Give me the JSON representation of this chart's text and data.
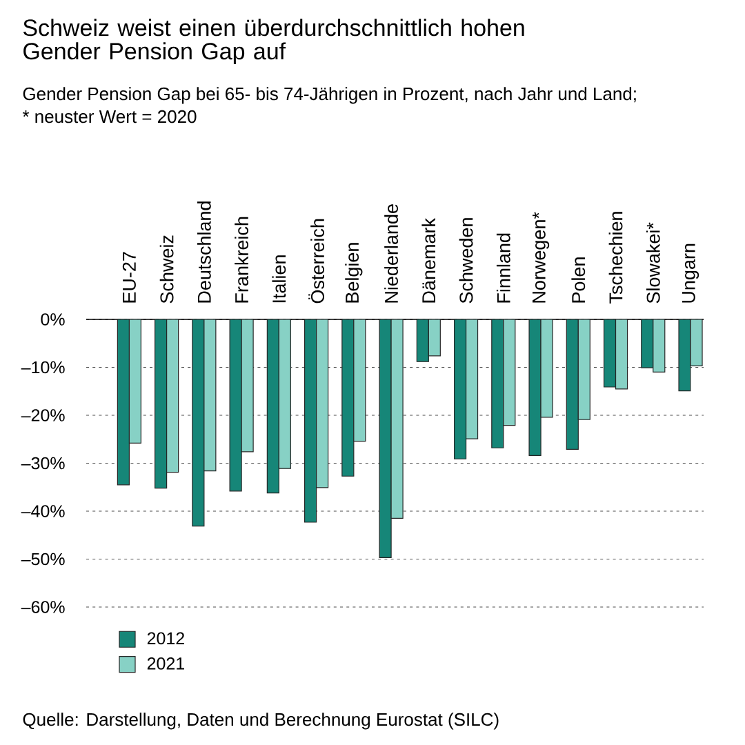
{
  "chart_data": {
    "type": "bar",
    "title": "Schweiz weist einen überdurchschnittlich hohen Gender Pension Gap auf",
    "subtitle": "Gender Pension Gap bei 65- bis 74-Jährigen in Prozent, nach Jahr und Land;",
    "annotations": [
      "* neuster Wert = 2020",
      "Quelle: Darstellung, Daten und Berechnung Eurostat (SILC)"
    ],
    "categories": [
      "EU-27",
      "Schweiz",
      "Deutschland",
      "Frankreich",
      "Italien",
      "Österreich",
      "Belgien",
      "Niederlande",
      "Dänemark",
      "Schweden",
      "Finnland",
      "Norwegen*",
      "Polen",
      "Tschechien",
      "Slowakei*",
      "Ungarn"
    ],
    "series": [
      {
        "name": "2012",
        "color": "#168678",
        "values": [
          -34.5,
          -35.2,
          -43.1,
          -35.8,
          -36.2,
          -42.3,
          -32.7,
          -49.7,
          -8.8,
          -29.1,
          -26.8,
          -28.4,
          -27.1,
          -14.1,
          -10.1,
          -14.9
        ]
      },
      {
        "name": "2021",
        "color": "#87d1c5",
        "values": [
          -25.8,
          -31.9,
          -31.6,
          -27.6,
          -31.1,
          -35.1,
          -25.4,
          -41.5,
          -7.6,
          -24.9,
          -22.1,
          -20.4,
          -20.9,
          -14.5,
          -11.0,
          -9.7
        ]
      }
    ],
    "ylim": [
      -60,
      0
    ],
    "yticks": [
      {
        "value": 0,
        "label": "0%"
      },
      {
        "value": -10,
        "label": "–10%"
      },
      {
        "value": -20,
        "label": "–20%"
      },
      {
        "value": -30,
        "label": "–30%"
      },
      {
        "value": -40,
        "label": "–40%"
      },
      {
        "value": -50,
        "label": "–50%"
      },
      {
        "value": -60,
        "label": "–60%"
      }
    ],
    "grid": "y",
    "legend": "bottom left"
  }
}
